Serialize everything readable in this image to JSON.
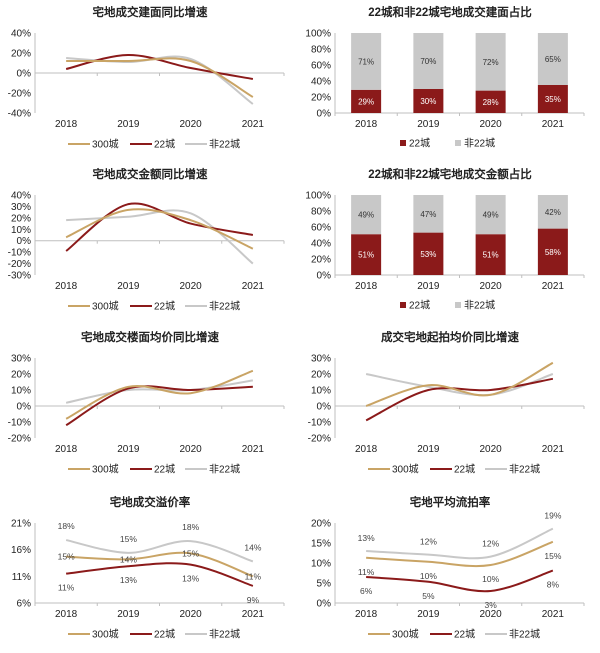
{
  "colors": {
    "300城": "#c9a465",
    "22城": "#8b1a1a",
    "非22城": "#c8c8c8",
    "grid": "#bfbfbf",
    "text": "#222222"
  },
  "chart_data": [
    {
      "type": "line",
      "title": "宅地成交建面同比增速",
      "categories": [
        "2018",
        "2019",
        "2020",
        "2021"
      ],
      "ylim": [
        -40,
        40
      ],
      "yticks": [
        -40,
        -20,
        0,
        20,
        40
      ],
      "tick_labels": [
        "-40%",
        "-20%",
        "0%",
        "20%",
        "40%"
      ],
      "legend": "bottom",
      "series": [
        {
          "name": "300城",
          "values": [
            12,
            12,
            12,
            -24
          ]
        },
        {
          "name": "22城",
          "values": [
            4,
            18,
            5,
            -6
          ]
        },
        {
          "name": "非22城",
          "values": [
            15,
            11,
            14,
            -31
          ]
        }
      ]
    },
    {
      "type": "bar",
      "stacked": true,
      "title": "22城和非22城宅地成交建面占比",
      "categories": [
        "2018",
        "2019",
        "2020",
        "2021"
      ],
      "ylim": [
        0,
        100
      ],
      "yticks": [
        0,
        20,
        40,
        60,
        80,
        100
      ],
      "tick_labels": [
        "0%",
        "20%",
        "40%",
        "60%",
        "80%",
        "100%"
      ],
      "legend": "bottom",
      "series": [
        {
          "name": "22城",
          "values": [
            29,
            30,
            28,
            35
          ],
          "labels": [
            "29%",
            "30%",
            "28%",
            "35%"
          ]
        },
        {
          "name": "非22城",
          "values": [
            71,
            70,
            72,
            65
          ],
          "labels": [
            "71%",
            "70%",
            "72%",
            "65%"
          ]
        }
      ]
    },
    {
      "type": "line",
      "title": "宅地成交金额同比增速",
      "categories": [
        "2018",
        "2019",
        "2020",
        "2021"
      ],
      "ylim": [
        -30,
        40
      ],
      "yticks": [
        -30,
        -20,
        -10,
        0,
        10,
        20,
        30,
        40
      ],
      "tick_labels": [
        "-30%",
        "-20%",
        "-10%",
        "0%",
        "10%",
        "20%",
        "30%",
        "40%"
      ],
      "legend": "bottom",
      "series": [
        {
          "name": "300城",
          "values": [
            3,
            27,
            18,
            -7
          ]
        },
        {
          "name": "22城",
          "values": [
            -9,
            32,
            15,
            5
          ]
        },
        {
          "name": "非22城",
          "values": [
            18,
            21,
            24,
            -20
          ]
        }
      ]
    },
    {
      "type": "bar",
      "stacked": true,
      "title": "22城和非22城宅地成交金额占比",
      "categories": [
        "2018",
        "2019",
        "2020",
        "2021"
      ],
      "ylim": [
        0,
        100
      ],
      "yticks": [
        0,
        20,
        40,
        60,
        80,
        100
      ],
      "tick_labels": [
        "0%",
        "20%",
        "40%",
        "60%",
        "80%",
        "100%"
      ],
      "legend": "bottom",
      "series": [
        {
          "name": "22城",
          "values": [
            51,
            53,
            51,
            58
          ],
          "labels": [
            "51%",
            "53%",
            "51%",
            "58%"
          ]
        },
        {
          "name": "非22城",
          "values": [
            49,
            47,
            49,
            42
          ],
          "labels": [
            "49%",
            "47%",
            "49%",
            "42%"
          ]
        }
      ]
    },
    {
      "type": "line",
      "title": "宅地成交楼面均价同比增速",
      "categories": [
        "2018",
        "2019",
        "2020",
        "2021"
      ],
      "ylim": [
        -20,
        30
      ],
      "yticks": [
        -20,
        -10,
        0,
        10,
        20,
        30
      ],
      "tick_labels": [
        "-20%",
        "-10%",
        "0%",
        "10%",
        "20%",
        "30%"
      ],
      "legend": "bottom",
      "series": [
        {
          "name": "300城",
          "values": [
            -8,
            12,
            8,
            22
          ]
        },
        {
          "name": "22城",
          "values": [
            -12,
            11,
            10,
            12
          ]
        },
        {
          "name": "非22城",
          "values": [
            2,
            10,
            10,
            16
          ]
        }
      ]
    },
    {
      "type": "line",
      "title": "成交宅地起拍均价同比增速",
      "categories": [
        "2018",
        "2019",
        "2020",
        "2021"
      ],
      "ylim": [
        -20,
        30
      ],
      "yticks": [
        -20,
        -10,
        0,
        10,
        20,
        30
      ],
      "tick_labels": [
        "-20%",
        "-10%",
        "0%",
        "10%",
        "20%",
        "30%"
      ],
      "legend": "bottom",
      "series": [
        {
          "name": "300城",
          "values": [
            0,
            13,
            7,
            27
          ]
        },
        {
          "name": "22城",
          "values": [
            -9,
            10,
            10,
            17
          ]
        },
        {
          "name": "非22城",
          "values": [
            20,
            12,
            7,
            20
          ]
        }
      ]
    },
    {
      "type": "line",
      "title": "宅地成交溢价率",
      "categories": [
        "2018",
        "2019",
        "2020",
        "2021"
      ],
      "ylim": [
        6,
        21
      ],
      "yticks": [
        6,
        11,
        16,
        21
      ],
      "tick_labels": [
        "6%",
        "11%",
        "16%",
        "21%"
      ],
      "legend": "bottom",
      "series": [
        {
          "name": "300城",
          "values": [
            14.7,
            14.2,
            15.3,
            11
          ],
          "labels": [
            "15%",
            "14%",
            "15%",
            "11%"
          ]
        },
        {
          "name": "22城",
          "values": [
            11.5,
            12.9,
            13.2,
            9.2
          ],
          "labels": [
            "11%",
            "13%",
            "13%",
            "9%"
          ]
        },
        {
          "name": "非22城",
          "values": [
            17.8,
            15.4,
            17.6,
            13.8
          ],
          "labels": [
            "18%",
            "15%",
            "18%",
            "14%"
          ]
        }
      ]
    },
    {
      "type": "line",
      "title": "宅地平均流拍率",
      "categories": [
        "2018",
        "2019",
        "2020",
        "2021"
      ],
      "ylim": [
        0,
        20
      ],
      "yticks": [
        0,
        5,
        10,
        15,
        20
      ],
      "tick_labels": [
        "0%",
        "5%",
        "10%",
        "15%",
        "20%"
      ],
      "legend": "bottom",
      "series": [
        {
          "name": "300城",
          "values": [
            11.3,
            10.3,
            9.5,
            15.3
          ],
          "labels": [
            "11%",
            "10%",
            "10%",
            "15%"
          ]
        },
        {
          "name": "22城",
          "values": [
            6.5,
            5.3,
            3,
            8.1
          ],
          "labels": [
            "6%",
            "5%",
            "3%",
            "8%"
          ]
        },
        {
          "name": "非22城",
          "values": [
            13,
            12.1,
            11.6,
            18.6
          ],
          "labels": [
            "13%",
            "12%",
            "12%",
            "19%"
          ]
        }
      ]
    }
  ]
}
